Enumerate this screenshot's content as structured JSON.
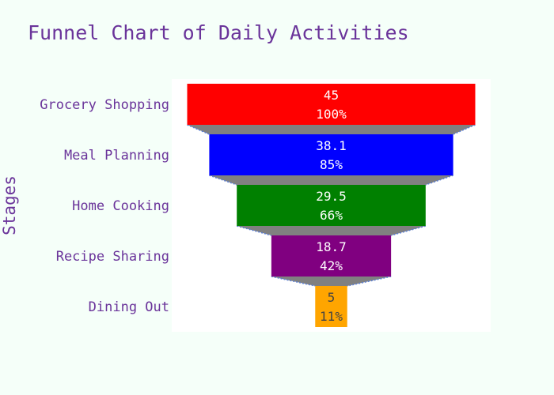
{
  "chart_data": {
    "type": "funnel",
    "title": "Funnel Chart of Daily Activities",
    "ylabel": "Stages",
    "xlabel": "",
    "categories": [
      "Grocery Shopping",
      "Meal Planning",
      "Home Cooking",
      "Recipe Sharing",
      "Dining Out"
    ],
    "values": [
      45,
      38.1,
      29.5,
      18.7,
      5
    ],
    "value_labels": [
      "45",
      "38.1",
      "29.5",
      "18.7",
      "5"
    ],
    "percent_initial": [
      "100%",
      "85%",
      "66%",
      "42%",
      "11%"
    ],
    "bar_colors": [
      "#ff0000",
      "#0000ff",
      "#008000",
      "#800080",
      "#ffa500"
    ],
    "label_colors": [
      "#ffffff",
      "#ffffff",
      "#ffffff",
      "#ffffff",
      "#444444"
    ],
    "connector_color": "#808080",
    "connector_line_color": "#5b7fd6",
    "plot_background": "#ffffff",
    "page_background": "#f5fff9",
    "text_color": "#6a349a",
    "legend": false
  }
}
